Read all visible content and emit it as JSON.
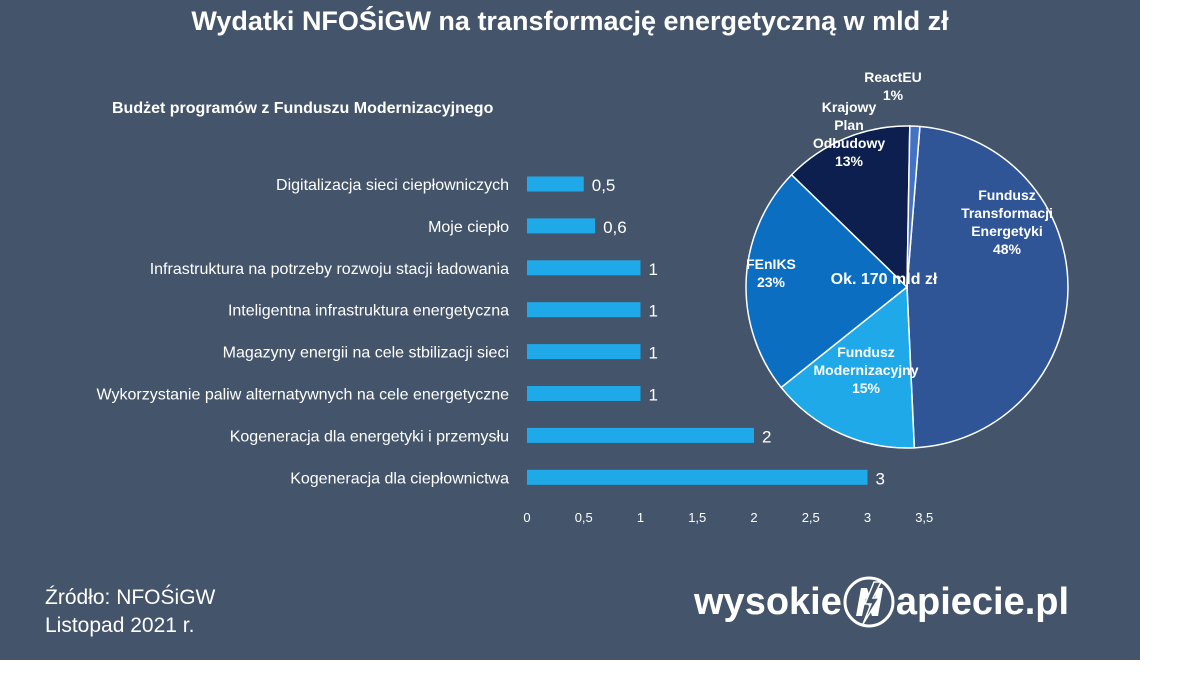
{
  "title": "Wydatki NFOŚiGW na transformację energetyczną w mld zł",
  "source": {
    "line1": "Źródło: NFOŚiGW",
    "line2": "Listopad 2021 r."
  },
  "logo": {
    "part1": "wysokie",
    "part2": "apiecie.pl",
    "icon": "n-lightning-logo-icon"
  },
  "colors": {
    "background": "#44546a",
    "bar": "#1fa9e8"
  },
  "chart_data": [
    {
      "type": "bar",
      "orientation": "horizontal",
      "title": "Budżet programów z Funduszu Modernizacyjnego",
      "categories": [
        "Digitalizacja sieci ciepłowniczych",
        "Moje ciepło",
        "Infrastruktura na potrzeby rozwoju stacji ładowania",
        "Inteligentna infrastruktura energetyczna",
        "Magazyny energii na cele stbilizacji sieci",
        "Wykorzystanie paliw alternatywnych na cele energetyczne",
        "Kogeneracja dla energetyki i przemysłu",
        "Kogeneracja dla ciepłownictwa"
      ],
      "values": [
        0.5,
        0.6,
        1,
        1,
        1,
        1,
        2,
        3
      ],
      "data_labels": [
        "0,5",
        "0,6",
        "1",
        "1",
        "1",
        "1",
        "2",
        "3"
      ],
      "xlim": [
        0,
        3.5
      ],
      "xticks": [
        0,
        0.5,
        1,
        1.5,
        2,
        2.5,
        3,
        3.5
      ],
      "xtick_labels": [
        "0",
        "0,5",
        "1",
        "1,5",
        "2",
        "2,5",
        "3",
        "3,5"
      ],
      "grid": false,
      "color": "#1fa9e8"
    },
    {
      "type": "pie",
      "center_label": "Ok. 170 mld zł",
      "slices": [
        {
          "label": [
            "Fundusz",
            "Transformacji",
            "Energetyki",
            "48%"
          ],
          "value": 48,
          "color": "#2f5597"
        },
        {
          "label": [
            "Fundusz",
            "Modernizacyjny",
            "15%"
          ],
          "value": 15,
          "color": "#1fa9e8"
        },
        {
          "label": [
            "FEnIKS",
            "23%"
          ],
          "value": 23,
          "color": "#0b6ec1"
        },
        {
          "label": [
            "Krajowy",
            "Plan",
            "Odbudowy",
            "13%"
          ],
          "value": 13,
          "color": "#0c1f4e"
        },
        {
          "label": [
            "ReactEU",
            "1%"
          ],
          "value": 1,
          "color": "#4472c4"
        }
      ]
    }
  ]
}
